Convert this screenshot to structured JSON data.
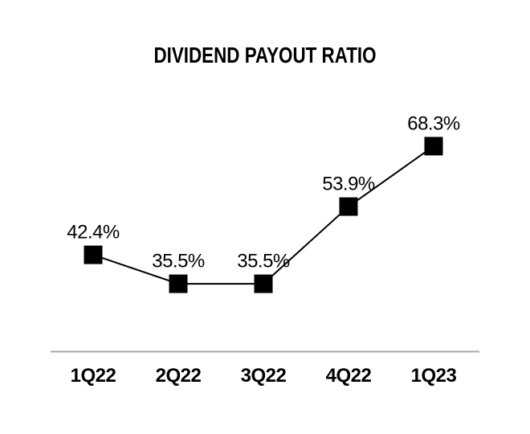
{
  "chart_data": {
    "type": "line",
    "title": "DIVIDEND PAYOUT RATIO",
    "categories": [
      "1Q22",
      "2Q22",
      "3Q22",
      "4Q22",
      "1Q23"
    ],
    "values": [
      42.4,
      35.5,
      35.5,
      53.9,
      68.3
    ],
    "labels": [
      "42.4%",
      "35.5%",
      "35.5%",
      "53.9%",
      "68.3%"
    ],
    "xlabel": "",
    "ylabel": "",
    "ylim": [
      20,
      85
    ],
    "marker": "square",
    "grid": false,
    "legend": "none",
    "y_axis_visible": false,
    "colors": {
      "line": "#000000",
      "marker": "#000000",
      "axis_line": "#a6a6a6",
      "text": "#000000",
      "background": "#ffffff"
    }
  }
}
